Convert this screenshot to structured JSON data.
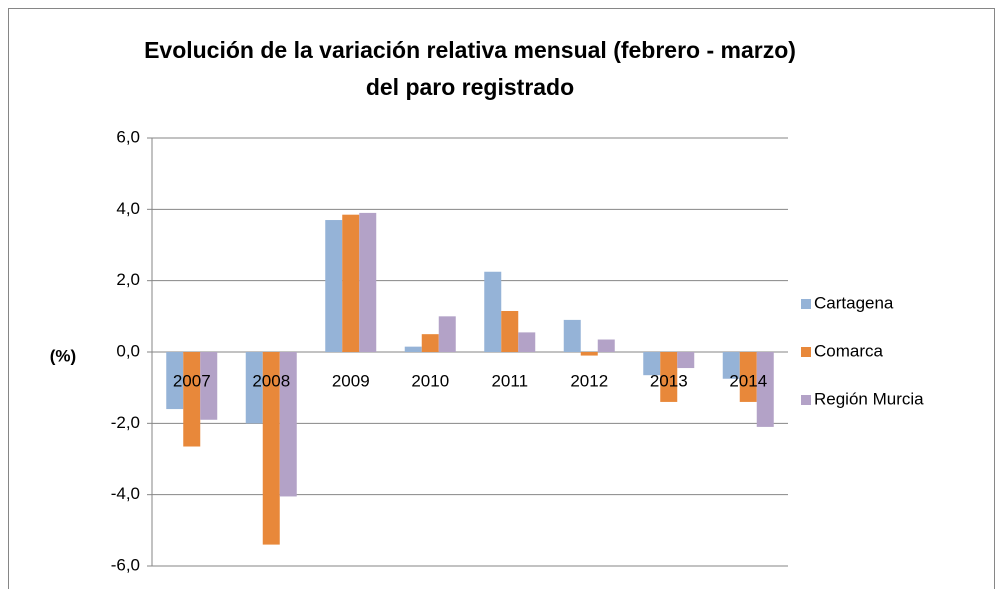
{
  "chart_data": {
    "type": "bar",
    "title": [
      "Evolución de la variación relativa mensual (febrero - marzo)",
      "del paro registrado"
    ],
    "y_label": "(%)",
    "categories": [
      "2007",
      "2008",
      "2009",
      "2010",
      "2011",
      "2012",
      "2013",
      "2014"
    ],
    "series": [
      {
        "name": "Cartagena",
        "color": "#95b3d7",
        "values": [
          -1.6,
          -2.0,
          3.7,
          0.15,
          2.25,
          0.9,
          -0.65,
          -0.75
        ]
      },
      {
        "name": "Comarca",
        "color": "#e8883a",
        "values": [
          -2.65,
          -5.4,
          3.85,
          0.5,
          1.15,
          -0.1,
          -1.4,
          -1.4
        ]
      },
      {
        "name": "Región Murcia",
        "color": "#b3a2c7",
        "values": [
          -1.9,
          -4.05,
          3.9,
          1.0,
          0.55,
          0.35,
          -0.45,
          -2.1
        ]
      }
    ],
    "ylim": [
      -6,
      6
    ],
    "yticks": [
      {
        "value": -6,
        "label": "-6,0"
      },
      {
        "value": -4,
        "label": "-4,0"
      },
      {
        "value": -2,
        "label": "-2,0"
      },
      {
        "value": 0,
        "label": "0,0"
      },
      {
        "value": 2,
        "label": "2,0"
      },
      {
        "value": 4,
        "label": "4,0"
      },
      {
        "value": 6,
        "label": "6,0"
      }
    ],
    "grid": true,
    "legend": "right"
  }
}
